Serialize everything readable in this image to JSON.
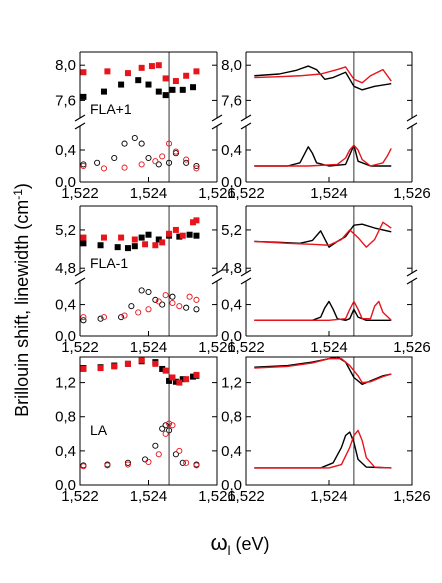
{
  "figure": {
    "ylabel_main": "Brillouin shift, linewidth (cm",
    "ylabel_sup": "-1",
    "ylabel_close": ")",
    "xlabel_sym": "ω",
    "xlabel_sub": "l",
    "xlabel_unit": " (eV)",
    "colors": {
      "series_a": "#000000",
      "series_b": "#e8141c"
    }
  },
  "chart_data": [
    {
      "type": "scatter",
      "panel": "FLA+1 experiment",
      "label": "FLA+1",
      "xlim": [
        1.522,
        1.526
      ],
      "x_ticks": [
        "1,522",
        "1,524",
        "1,526"
      ],
      "split_axis": true,
      "ylim_top": [
        7.4,
        8.15
      ],
      "ylim_bottom": [
        0,
        0.7
      ],
      "y_ticks_top": [
        "8,0",
        "7,6"
      ],
      "y_ticks_bottom": [
        "0,4",
        "0,0"
      ],
      "vline_x": 1.5246,
      "series": [
        {
          "color": "#000000",
          "marker": "filled-square",
          "part": "top",
          "x": [
            1.5221,
            1.5227,
            1.5232,
            1.5237,
            1.524,
            1.5243,
            1.5245,
            1.5247,
            1.525,
            1.5253
          ],
          "values": [
            7.64,
            7.7,
            7.78,
            7.83,
            7.78,
            7.7,
            7.66,
            7.72,
            7.72,
            7.75
          ]
        },
        {
          "color": "#e8141c",
          "marker": "filled-square",
          "part": "top",
          "x": [
            1.5221,
            1.5228,
            1.5234,
            1.5238,
            1.5241,
            1.5243,
            1.5245,
            1.5248,
            1.5251,
            1.5254
          ],
          "values": [
            7.92,
            7.93,
            7.91,
            7.97,
            7.99,
            8.0,
            7.85,
            7.82,
            7.88,
            7.93
          ]
        },
        {
          "color": "#000000",
          "marker": "open-circle",
          "part": "bottom",
          "x": [
            1.5221,
            1.5225,
            1.523,
            1.5233,
            1.5236,
            1.5238,
            1.524,
            1.5243,
            1.5246,
            1.5248,
            1.5251,
            1.5254
          ],
          "values": [
            0.22,
            0.24,
            0.3,
            0.48,
            0.55,
            0.48,
            0.3,
            0.22,
            0.24,
            0.36,
            0.24,
            0.2
          ]
        },
        {
          "color": "#e8141c",
          "marker": "open-circle",
          "part": "bottom",
          "x": [
            1.5221,
            1.5227,
            1.5233,
            1.5238,
            1.5242,
            1.5244,
            1.5246,
            1.5248,
            1.5251,
            1.5254
          ],
          "values": [
            0.2,
            0.17,
            0.18,
            0.22,
            0.26,
            0.32,
            0.48,
            0.38,
            0.28,
            0.17
          ]
        }
      ]
    },
    {
      "type": "line",
      "panel": "FLA+1 theory",
      "xlim": [
        1.522,
        1.526
      ],
      "x_ticks": [
        "1,522",
        "1,524",
        "1,526"
      ],
      "split_axis": true,
      "ylim_top": [
        7.4,
        8.15
      ],
      "ylim_bottom": [
        0,
        0.7
      ],
      "y_ticks_top": [
        "8,0",
        "7,6"
      ],
      "y_ticks_bottom": [
        "0,4",
        "0,0"
      ],
      "vline_x": 1.5246,
      "series": [
        {
          "color": "#000000",
          "part": "top",
          "x": [
            1.5222,
            1.5228,
            1.5232,
            1.5235,
            1.5237,
            1.5239,
            1.5241,
            1.5244,
            1.5246,
            1.5248,
            1.5251,
            1.5255
          ],
          "values": [
            7.88,
            7.9,
            7.94,
            7.99,
            7.95,
            7.84,
            7.86,
            7.92,
            7.76,
            7.72,
            7.76,
            7.79
          ]
        },
        {
          "color": "#e8141c",
          "part": "top",
          "x": [
            1.5222,
            1.5228,
            1.5233,
            1.5238,
            1.5242,
            1.5244,
            1.5246,
            1.5248,
            1.525,
            1.5253,
            1.5255
          ],
          "values": [
            7.86,
            7.87,
            7.88,
            7.9,
            7.95,
            7.98,
            7.84,
            7.8,
            7.88,
            7.95,
            7.82
          ]
        },
        {
          "color": "#000000",
          "part": "bottom",
          "x": [
            1.5222,
            1.523,
            1.5233,
            1.5234,
            1.5235,
            1.5236,
            1.5237,
            1.524,
            1.5244,
            1.5246,
            1.5247,
            1.525,
            1.5255
          ],
          "values": [
            0.2,
            0.2,
            0.24,
            0.34,
            0.44,
            0.36,
            0.24,
            0.2,
            0.22,
            0.46,
            0.26,
            0.2,
            0.2
          ]
        },
        {
          "color": "#e8141c",
          "part": "bottom",
          "x": [
            1.5222,
            1.5235,
            1.5242,
            1.5244,
            1.5245,
            1.5246,
            1.5247,
            1.5248,
            1.525,
            1.5253,
            1.5254,
            1.5255
          ],
          "values": [
            0.2,
            0.2,
            0.22,
            0.3,
            0.4,
            0.46,
            0.4,
            0.28,
            0.2,
            0.24,
            0.32,
            0.42
          ]
        }
      ]
    },
    {
      "type": "scatter",
      "panel": "FLA-1 experiment",
      "label": "FLA-1",
      "xlim": [
        1.522,
        1.526
      ],
      "x_ticks": [
        "1,522",
        "1,524",
        "1,526"
      ],
      "split_axis": true,
      "ylim_top": [
        4.75,
        5.45
      ],
      "ylim_bottom": [
        0,
        0.7
      ],
      "y_ticks_top": [
        "5,2",
        "4,8"
      ],
      "y_ticks_bottom": [
        "0,4",
        "0,0"
      ],
      "vline_x": 1.5246,
      "series": [
        {
          "color": "#000000",
          "marker": "filled-square",
          "part": "top",
          "x": [
            1.5221,
            1.5226,
            1.5231,
            1.5234,
            1.5236,
            1.5238,
            1.524,
            1.5243,
            1.5246,
            1.5249,
            1.5252,
            1.5254
          ],
          "values": [
            5.06,
            5.04,
            5.02,
            5.01,
            5.03,
            5.12,
            5.15,
            5.1,
            5.14,
            5.13,
            5.15,
            5.14
          ]
        },
        {
          "color": "#e8141c",
          "marker": "filled-square",
          "part": "top",
          "x": [
            1.5221,
            1.5227,
            1.5232,
            1.5236,
            1.5239,
            1.5242,
            1.5244,
            1.5246,
            1.5248,
            1.525,
            1.5253,
            1.5254
          ],
          "values": [
            5.12,
            5.12,
            5.12,
            5.1,
            5.05,
            5.04,
            5.07,
            5.16,
            5.2,
            5.14,
            5.28,
            5.3
          ]
        },
        {
          "color": "#000000",
          "marker": "open-circle",
          "part": "bottom",
          "x": [
            1.5221,
            1.5226,
            1.5232,
            1.5235,
            1.5238,
            1.524,
            1.5242,
            1.5244,
            1.5247,
            1.5251,
            1.5254
          ],
          "values": [
            0.2,
            0.22,
            0.24,
            0.38,
            0.58,
            0.56,
            0.46,
            0.4,
            0.5,
            0.36,
            0.34
          ]
        },
        {
          "color": "#e8141c",
          "marker": "open-circle",
          "part": "bottom",
          "x": [
            1.5221,
            1.5227,
            1.5233,
            1.5237,
            1.524,
            1.5243,
            1.5245,
            1.5247,
            1.5249,
            1.5252,
            1.5254
          ],
          "values": [
            0.24,
            0.24,
            0.26,
            0.3,
            0.34,
            0.44,
            0.52,
            0.42,
            0.38,
            0.5,
            0.46
          ]
        }
      ]
    },
    {
      "type": "line",
      "panel": "FLA-1 theory",
      "xlim": [
        1.522,
        1.526
      ],
      "x_ticks": [
        "1,522",
        "1,524",
        "1,526"
      ],
      "split_axis": true,
      "ylim_top": [
        4.75,
        5.45
      ],
      "ylim_bottom": [
        0,
        0.7
      ],
      "y_ticks_top": [
        "5,2",
        "4,8"
      ],
      "y_ticks_bottom": [
        "0,4",
        "0,0"
      ],
      "vline_x": 1.5246,
      "series": [
        {
          "color": "#000000",
          "part": "top",
          "x": [
            1.5222,
            1.5228,
            1.5233,
            1.5236,
            1.5238,
            1.524,
            1.5242,
            1.5244,
            1.5246,
            1.5248,
            1.5251,
            1.5255
          ],
          "values": [
            5.08,
            5.07,
            5.06,
            5.09,
            5.19,
            5.02,
            5.08,
            5.13,
            5.25,
            5.26,
            5.22,
            5.18
          ]
        },
        {
          "color": "#e8141c",
          "part": "top",
          "x": [
            1.5222,
            1.523,
            1.5236,
            1.524,
            1.5243,
            1.5245,
            1.5247,
            1.5249,
            1.5251,
            1.5253,
            1.5255
          ],
          "values": [
            5.08,
            5.06,
            5.05,
            5.04,
            5.1,
            5.2,
            5.12,
            5.02,
            5.1,
            5.28,
            5.22
          ]
        },
        {
          "color": "#000000",
          "part": "bottom",
          "x": [
            1.5222,
            1.5236,
            1.5238,
            1.5239,
            1.524,
            1.5241,
            1.5242,
            1.5244,
            1.5245,
            1.5246,
            1.5247,
            1.5249,
            1.5255
          ],
          "values": [
            0.2,
            0.2,
            0.24,
            0.36,
            0.44,
            0.34,
            0.22,
            0.2,
            0.22,
            0.34,
            0.24,
            0.2,
            0.2
          ]
        },
        {
          "color": "#e8141c",
          "part": "bottom",
          "x": [
            1.5222,
            1.524,
            1.5244,
            1.5245,
            1.5246,
            1.5247,
            1.5248,
            1.525,
            1.5251,
            1.5252,
            1.5253,
            1.5255
          ],
          "values": [
            0.2,
            0.2,
            0.22,
            0.34,
            0.44,
            0.34,
            0.22,
            0.22,
            0.38,
            0.44,
            0.3,
            0.2
          ]
        }
      ]
    },
    {
      "type": "scatter",
      "panel": "LA experiment",
      "label": "LA",
      "xlim": [
        1.522,
        1.526
      ],
      "x_ticks": [
        "1,522",
        "1,524",
        "1,526"
      ],
      "ylim": [
        0,
        1.5
      ],
      "y_ticks": [
        "1,2",
        "0,8",
        "0,4",
        "0,0"
      ],
      "vline_x": 1.5246,
      "series": [
        {
          "color": "#000000",
          "marker": "filled-square",
          "x": [
            1.5221,
            1.5226,
            1.523,
            1.5234,
            1.5238,
            1.5242,
            1.5244,
            1.5246,
            1.5248,
            1.525,
            1.5253,
            1.5254
          ],
          "values": [
            1.37,
            1.38,
            1.4,
            1.42,
            1.45,
            1.44,
            1.36,
            1.22,
            1.21,
            1.24,
            1.27,
            1.28
          ]
        },
        {
          "color": "#e8141c",
          "marker": "filled-square",
          "x": [
            1.5221,
            1.5226,
            1.523,
            1.5234,
            1.5238,
            1.5242,
            1.5245,
            1.5247,
            1.5249,
            1.5251,
            1.5254
          ],
          "values": [
            1.36,
            1.37,
            1.39,
            1.42,
            1.46,
            1.42,
            1.34,
            1.26,
            1.2,
            1.24,
            1.29
          ]
        },
        {
          "color": "#000000",
          "marker": "open-circle",
          "x": [
            1.5221,
            1.5228,
            1.5234,
            1.5239,
            1.5242,
            1.5244,
            1.5245,
            1.5246,
            1.5248,
            1.525,
            1.5254
          ],
          "values": [
            0.23,
            0.24,
            0.26,
            0.3,
            0.46,
            0.66,
            0.7,
            0.64,
            0.36,
            0.26,
            0.24
          ]
        },
        {
          "color": "#e8141c",
          "marker": "open-circle",
          "x": [
            1.5221,
            1.5228,
            1.5234,
            1.524,
            1.5243,
            1.5245,
            1.5246,
            1.5247,
            1.5249,
            1.5251,
            1.5254
          ],
          "values": [
            0.22,
            0.23,
            0.24,
            0.27,
            0.36,
            0.6,
            0.72,
            0.7,
            0.4,
            0.26,
            0.23
          ]
        }
      ]
    },
    {
      "type": "line",
      "panel": "LA theory",
      "xlim": [
        1.522,
        1.526
      ],
      "x_ticks": [
        "1,522",
        "1,524",
        "1,526"
      ],
      "ylim": [
        0,
        1.5
      ],
      "y_ticks": [
        "1,2",
        "0,8",
        "0,4",
        "0,0"
      ],
      "vline_x": 1.5246,
      "series": [
        {
          "color": "#000000",
          "x": [
            1.5222,
            1.523,
            1.5236,
            1.524,
            1.5242,
            1.5244,
            1.5246,
            1.5248,
            1.525,
            1.5253,
            1.5255
          ],
          "values": [
            1.38,
            1.4,
            1.44,
            1.48,
            1.5,
            1.44,
            1.26,
            1.18,
            1.22,
            1.28,
            1.3
          ]
        },
        {
          "color": "#e8141c",
          "x": [
            1.5222,
            1.523,
            1.5236,
            1.524,
            1.5243,
            1.5245,
            1.5247,
            1.5248,
            1.525,
            1.5253,
            1.5255
          ],
          "values": [
            1.37,
            1.39,
            1.43,
            1.48,
            1.48,
            1.4,
            1.28,
            1.2,
            1.21,
            1.27,
            1.3
          ]
        },
        {
          "color": "#000000",
          "x": [
            1.5222,
            1.5238,
            1.5241,
            1.5243,
            1.5244,
            1.5245,
            1.5246,
            1.5247,
            1.5249,
            1.5255
          ],
          "values": [
            0.2,
            0.2,
            0.26,
            0.44,
            0.58,
            0.62,
            0.5,
            0.3,
            0.21,
            0.2
          ]
        },
        {
          "color": "#e8141c",
          "x": [
            1.5222,
            1.524,
            1.5243,
            1.5245,
            1.5246,
            1.5247,
            1.5248,
            1.5249,
            1.5251,
            1.5255
          ],
          "values": [
            0.2,
            0.2,
            0.24,
            0.44,
            0.58,
            0.64,
            0.52,
            0.32,
            0.21,
            0.2
          ]
        }
      ]
    }
  ]
}
